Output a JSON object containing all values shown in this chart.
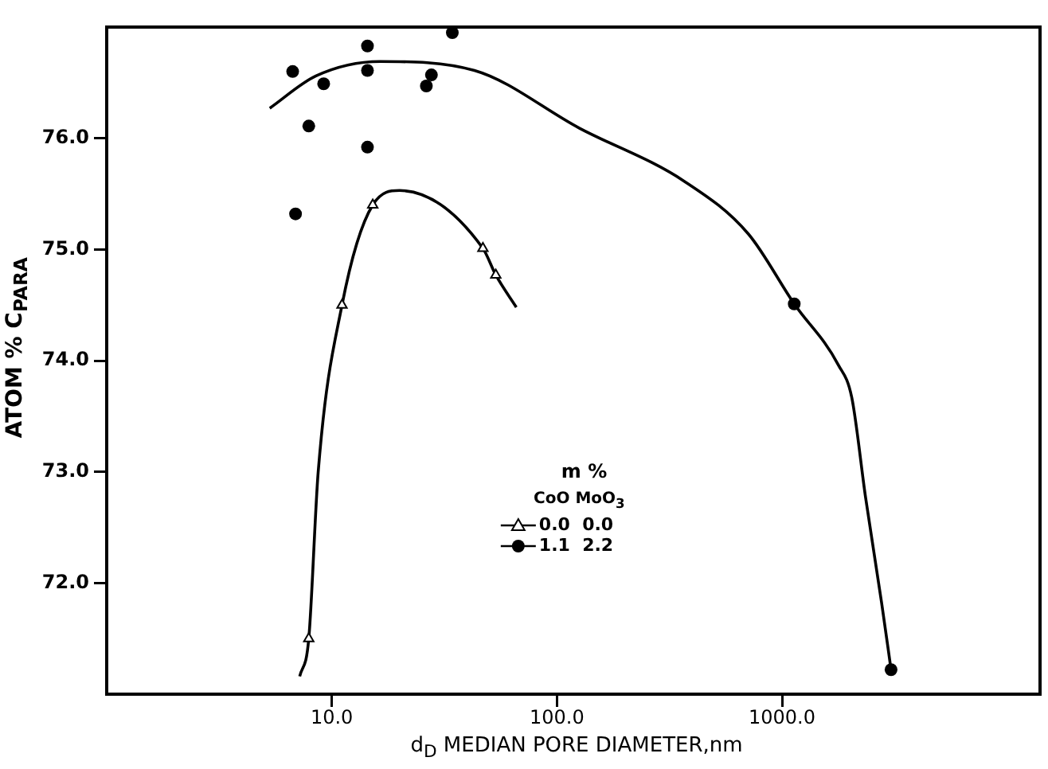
{
  "chart_data": {
    "type": "scatter",
    "xlabel": "d$_{D}$ MEDIAN PORE DIAMETER,nm",
    "ylabel": "ATOM % C$_{PARA}$",
    "legend_title": "m %",
    "annotations": [
      "CoO MoO$_{3}$"
    ],
    "log": "x",
    "xlim": [
      1,
      14000
    ],
    "ylim": [
      71,
      77
    ],
    "xticks": [
      {
        "value": 10,
        "label": "10.0"
      },
      {
        "value": 100,
        "label": "100.0"
      },
      {
        "value": 1000,
        "label": "1000.0"
      }
    ],
    "yticks": [
      {
        "value": 72,
        "label": "72.0"
      },
      {
        "value": 73,
        "label": "73.0"
      },
      {
        "value": 74,
        "label": "74.0"
      },
      {
        "value": 75,
        "label": "75.0"
      },
      {
        "value": 76,
        "label": "76.0"
      }
    ],
    "grid": false,
    "legend": "bottom",
    "series": [
      {
        "name": "0.0  0.0",
        "color": "#000000",
        "marker": "triangle",
        "x": [
          7.9,
          11.1,
          15.2,
          46.9,
          53.5
        ],
        "values": [
          71.5,
          74.5,
          75.4,
          75.01,
          74.77
        ]
      },
      {
        "name": "1.1  2.2",
        "color": "#000000",
        "marker": "circle",
        "x": [
          6.7,
          6.9,
          7.9,
          9.2,
          14.4,
          14.4,
          14.4,
          26.3,
          27.7,
          34.3,
          1133,
          3050
        ],
        "values": [
          76.6,
          75.32,
          76.11,
          76.49,
          76.83,
          76.61,
          75.92,
          76.47,
          76.57,
          76.95,
          74.51,
          71.22
        ]
      },
      {
        "type": "line",
        "color": "#000000",
        "marker": "none",
        "x": [
          7.2,
          7.9,
          8.7,
          11.1,
          15.2,
          20,
          46.9,
          53.5,
          66
        ],
        "values": [
          71.16,
          71.5,
          73.0,
          74.5,
          75.4,
          75.53,
          75.01,
          74.77,
          74.48
        ]
      },
      {
        "type": "line",
        "color": "#000000",
        "marker": "none",
        "x": [
          5.3,
          8.5,
          16.4,
          43,
          126,
          370,
          708,
          1133,
          1780,
          2040,
          2350,
          2770,
          3050
        ],
        "values": [
          76.27,
          76.56,
          76.69,
          76.61,
          76.09,
          75.61,
          75.14,
          74.51,
          73.96,
          73.67,
          72.77,
          71.82,
          71.22
        ]
      }
    ]
  }
}
